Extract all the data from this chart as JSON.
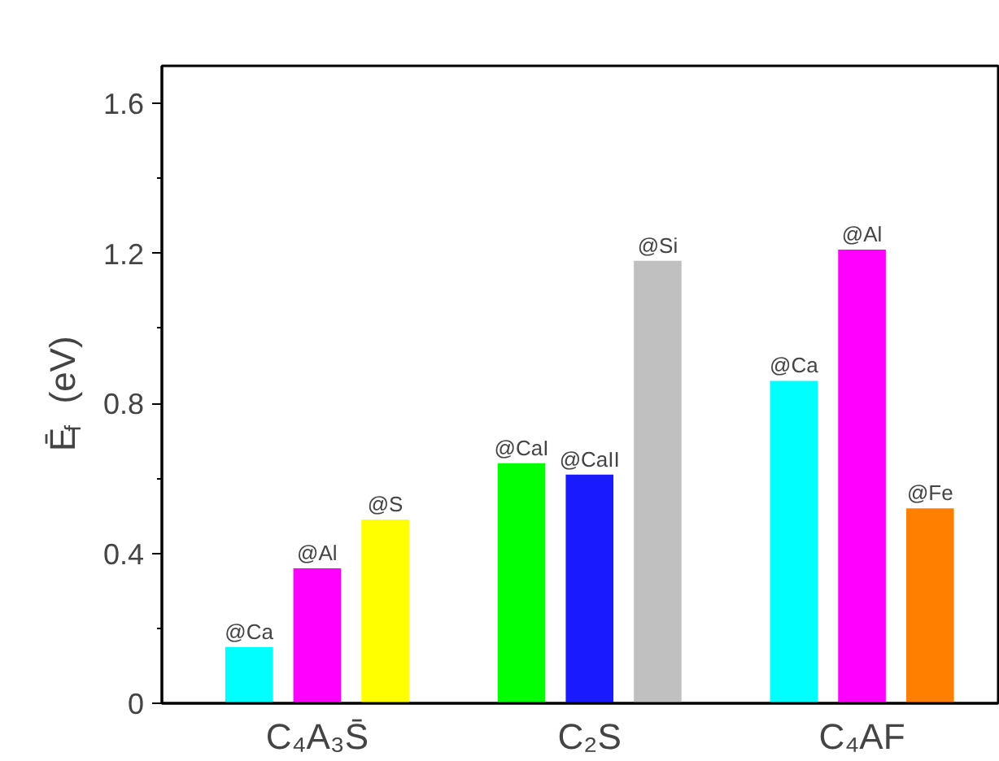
{
  "chart_data": {
    "type": "bar",
    "ylabel": "Ē$_{f}$ (eV)",
    "categories": [
      "C₄A₃S̄",
      "C₂S",
      "C₄AF"
    ],
    "series": [
      {
        "colors": [
          "#00ffff",
          "#00ff00",
          "#00ffff"
        ],
        "values": [
          0.15,
          0.64,
          0.86
        ],
        "value_labels": [
          "@Ca",
          "@CaI",
          "@Ca"
        ]
      },
      {
        "colors": [
          "#ff00ff",
          "#1a1aff",
          "#ff00ff"
        ],
        "values": [
          0.36,
          0.61,
          1.21
        ],
        "value_labels": [
          "@Al",
          "@CaII",
          "@Al"
        ]
      },
      {
        "colors": [
          "#ffff00",
          "#c0c0c0",
          "#ff8000"
        ],
        "values": [
          0.49,
          1.18,
          0.52
        ],
        "value_labels": [
          "@S",
          "@Si",
          "@Fe"
        ]
      }
    ],
    "ylim": [
      0,
      1.7
    ],
    "yticks": [
      0,
      {
        "value": 0.2,
        "label": null
      },
      0.4,
      {
        "value": 0.6,
        "label": null
      },
      0.8,
      {
        "value": 1.0,
        "label": null
      },
      1.2,
      {
        "value": 1.4,
        "label": null
      },
      1.6
    ],
    "grid": false
  }
}
